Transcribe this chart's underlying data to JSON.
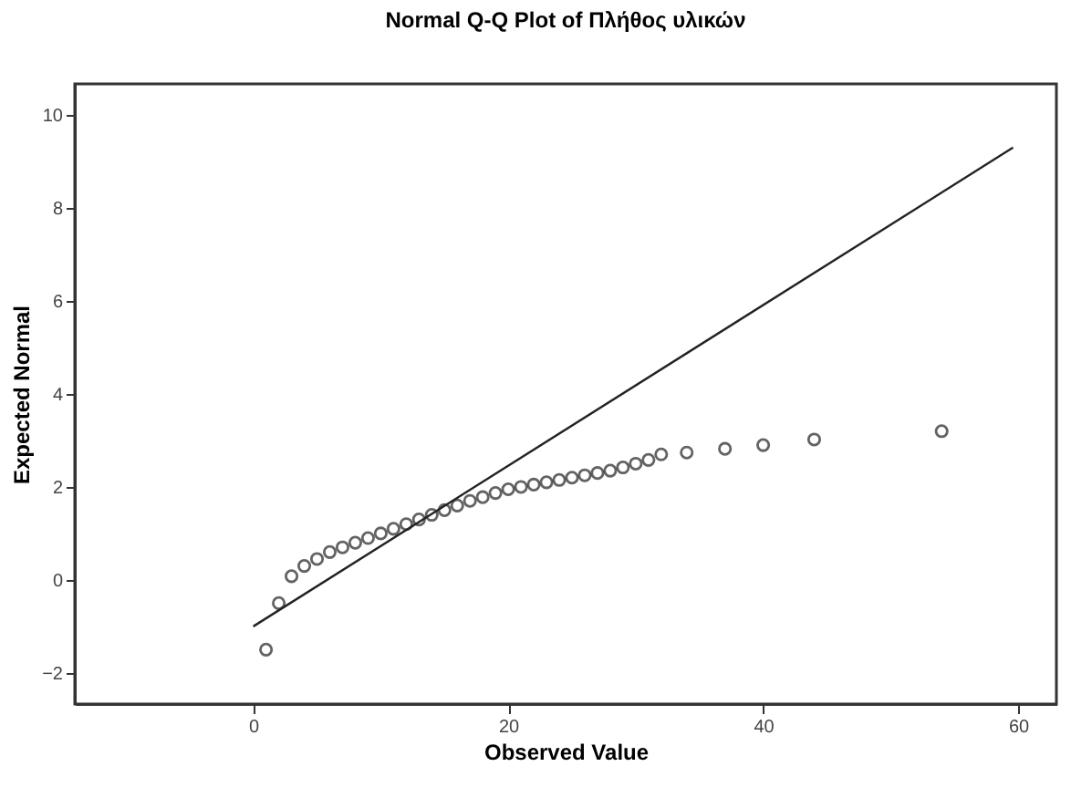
{
  "chart_data": {
    "type": "scatter",
    "title": "Normal Q-Q Plot of Πλήθος υλικών",
    "xlabel": "Observed Value",
    "ylabel": "Expected Normal",
    "series": [
      {
        "type": "scatter",
        "color": "#222222",
        "marker": "circle",
        "x": [
          1,
          2,
          3,
          4,
          5,
          6,
          7,
          8,
          9,
          10,
          11,
          12,
          13,
          14,
          15,
          16,
          17,
          18,
          19,
          20,
          21,
          22,
          23,
          24,
          25,
          26,
          27,
          28,
          29,
          30,
          31,
          32,
          34,
          37,
          40,
          44,
          54
        ],
        "values": [
          -1.5,
          -0.5,
          0.08,
          0.3,
          0.45,
          0.6,
          0.7,
          0.8,
          0.9,
          1.0,
          1.1,
          1.2,
          1.3,
          1.4,
          1.5,
          1.6,
          1.7,
          1.78,
          1.87,
          1.95,
          2.0,
          2.05,
          2.1,
          2.15,
          2.2,
          2.25,
          2.3,
          2.35,
          2.42,
          2.5,
          2.58,
          2.7,
          2.74,
          2.82,
          2.9,
          3.02,
          3.2
        ]
      },
      {
        "type": "line",
        "color": "#222222",
        "x": [
          0,
          59.6
        ],
        "values": [
          -1.0,
          9.3
        ]
      }
    ],
    "xlim": [
      -14,
      63
    ],
    "xticks": [
      0,
      20,
      40,
      60
    ],
    "ylim": [
      -2.67,
      10.67
    ],
    "yticks": [
      -2,
      0,
      2,
      4,
      6,
      8,
      10
    ],
    "grid": false
  }
}
